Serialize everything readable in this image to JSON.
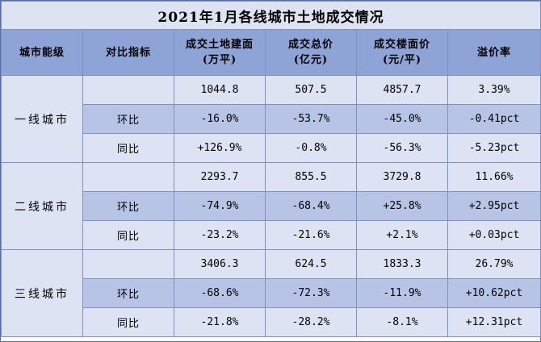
{
  "title": "2021年1月各线城市土地成交情况",
  "headers": [
    [
      "城市能级"
    ],
    [
      "对比指标"
    ],
    [
      "成交土地建面",
      "(万平)"
    ],
    [
      "成交总价",
      "(亿元)"
    ],
    [
      "成交楼面价",
      "(元/平)"
    ],
    [
      "溢价率"
    ]
  ],
  "groups": [
    {
      "tier": "一线城市",
      "rows": [
        {
          "indicator": "",
          "values": [
            "1044.8",
            "507.5",
            "4857.7",
            "3.39%"
          ]
        },
        {
          "indicator": "环比",
          "values": [
            "-16.0%",
            "-53.7%",
            "-45.0%",
            "-0.41pct"
          ]
        },
        {
          "indicator": "同比",
          "values": [
            "+126.9%",
            "-0.8%",
            "-56.3%",
            "-5.23pct"
          ]
        }
      ]
    },
    {
      "tier": "二线城市",
      "rows": [
        {
          "indicator": "",
          "values": [
            "2293.7",
            "855.5",
            "3729.8",
            "11.66%"
          ]
        },
        {
          "indicator": "环比",
          "values": [
            "-74.9%",
            "-68.4%",
            "+25.8%",
            "+2.95pct"
          ]
        },
        {
          "indicator": "同比",
          "values": [
            "-23.2%",
            "-21.6%",
            "+2.1%",
            "+0.03pct"
          ]
        }
      ]
    },
    {
      "tier": "三线城市",
      "rows": [
        {
          "indicator": "",
          "values": [
            "3406.3",
            "624.5",
            "1833.3",
            "26.79%"
          ]
        },
        {
          "indicator": "环比",
          "values": [
            "-68.6%",
            "-72.3%",
            "-11.9%",
            "+10.62pct"
          ]
        },
        {
          "indicator": "同比",
          "values": [
            "-21.8%",
            "-28.2%",
            "-8.1%",
            "+12.31pct"
          ]
        }
      ]
    }
  ]
}
